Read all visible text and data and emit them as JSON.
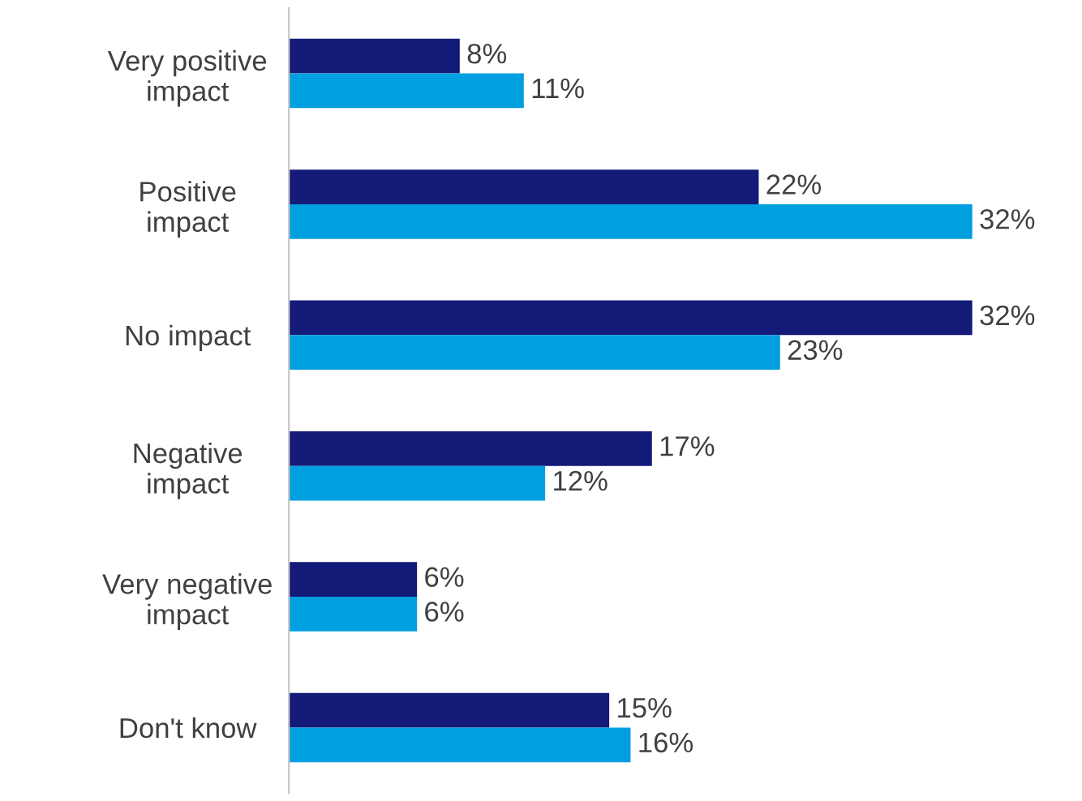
{
  "chart_data": {
    "type": "bar",
    "orientation": "horizontal",
    "categories": [
      "Very positive\nimpact",
      "Positive\nimpact",
      "No impact",
      "Negative\nimpact",
      "Very negative\nimpact",
      "Don't know"
    ],
    "series": [
      {
        "color": "#141a78",
        "values": [
          8,
          22,
          32,
          17,
          6,
          15
        ],
        "value_labels": [
          "8%",
          "22%",
          "32%",
          "17%",
          "6%",
          "15%"
        ]
      },
      {
        "color": "#009fdf",
        "values": [
          11,
          32,
          23,
          12,
          6,
          16
        ],
        "value_labels": [
          "11%",
          "32%",
          "23%",
          "12%",
          "6%",
          "16%"
        ]
      }
    ],
    "grid": false,
    "legend": false
  }
}
